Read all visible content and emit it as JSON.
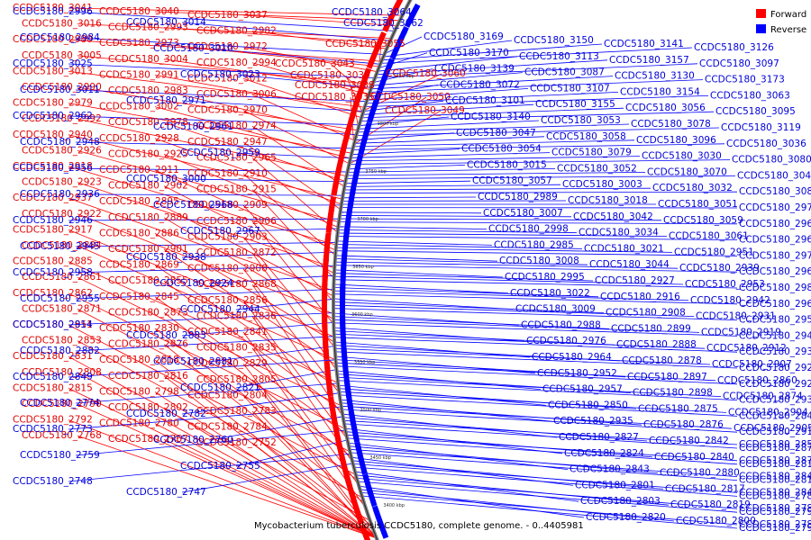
{
  "figure": {
    "caption": "Mycobacterium tuberculosis CCDC5180, complete genome. - 0..4405981",
    "legend": {
      "forward": {
        "label": "Forward",
        "color": "#ff0000"
      },
      "reverse": {
        "label": "Reverse",
        "color": "#0000ff"
      }
    },
    "scale_marks": [
      "3400 kbp",
      "3450 kbp",
      "3500 kbp",
      "3550 kbp",
      "3600 kbp",
      "3650 kbp",
      "3700 kbp",
      "3750 kbp",
      "3800 kbp",
      "3850 kbp"
    ],
    "forward_genes": [
      "CCDC5180_3055",
      "CCDC5180_3060",
      "CCDC5180_3049",
      "CCDC5180_3043",
      "CCDC5180_3039",
      "CCDC5180_3038",
      "CCDC5180_3035",
      "CCDC5180_3050",
      "CCDC5180_3041",
      "CCDC5180_3040",
      "CCDC5180_3037",
      "CCDC5180_3016",
      "CCDC5180_2993",
      "CCDC5180_2982",
      "CCDC5180_2980",
      "CCDC5180_2973",
      "CCDC5180_2972",
      "CCDC5180_3005",
      "CCDC5180_3004",
      "CCDC5180_2994",
      "CCDC5180_3013",
      "CCDC5180_2991",
      "CCDC5180_3012",
      "CCDC5180_2990",
      "CCDC5180_2983",
      "CCDC5180_3006",
      "CCDC5180_2979",
      "CCDC5180_3002",
      "CCDC5180_2970",
      "CCDC5180_2992",
      "CCDC5180_2978",
      "CCDC5180_2974",
      "CCDC5180_2940",
      "CCDC5180_2928",
      "CCDC5180_2947",
      "CCDC5180_2926",
      "CCDC5180_2925",
      "CCDC5180_2965",
      "CCDC5180_2918",
      "CCDC5180_2911",
      "CCDC5180_2910",
      "CCDC5180_2923",
      "CCDC5180_2902",
      "CCDC5180_2915",
      "CCDC5180_2937",
      "CCDC5180_2895",
      "CCDC5180_2909",
      "CCDC5180_2922",
      "CCDC5180_2889",
      "CCDC5180_2906",
      "CCDC5180_2917",
      "CCDC5180_2886",
      "CCDC5180_2903",
      "CCDC5180_2884",
      "CCDC5180_2901",
      "CCDC5180_2872",
      "CCDC5180_2885",
      "CCDC5180_2869",
      "CCDC5180_2900",
      "CCDC5180_2861",
      "CCDC5180_2855",
      "CCDC5180_2868",
      "CCDC5180_2862",
      "CCDC5180_2845",
      "CCDC5180_2856",
      "CCDC5180_2871",
      "CCDC5180_2873",
      "CCDC5180_2836",
      "CCDC5180_2851",
      "CCDC5180_2830",
      "CCDC5180_2841",
      "CCDC5180_2853",
      "CCDC5180_2826",
      "CCDC5180_2835",
      "CCDC5180_2831",
      "CCDC5180_2818",
      "CCDC5180_2829",
      "CCDC5180_2808",
      "CCDC5180_2816",
      "CCDC5180_2805",
      "CCDC5180_2815",
      "CCDC5180_2798",
      "CCDC5180_2804",
      "CCDC5180_2790",
      "CCDC5180_2802",
      "CCDC5180_2783",
      "CCDC5180_2792",
      "CCDC5180_2780",
      "CCDC5180_2784",
      "CCDC5180_2768",
      "CCDC5180_2767",
      "CCDC5180_2752"
    ],
    "reverse_genes": [
      "CCDC5180_3064",
      "CCDC5180_3062",
      "CCDC5180_2996",
      "CCDC5180_3014",
      "CCDC5180_2984",
      "CCDC5180_3010",
      "CCDC5180_3025",
      "CCDC5180_3023",
      "CCDC5180_3011",
      "CCDC5180_2971",
      "CCDC5180_2962",
      "CCDC5180_2961",
      "CCDC5180_2948",
      "CCDC5180_2959",
      "CCDC5180_2956",
      "CCDC5180_3000",
      "CCDC5180_2936",
      "CCDC5180_2968",
      "CCDC5180_2946",
      "CCDC5180_2967",
      "CCDC5180_2945",
      "CCDC5180_2938",
      "CCDC5180_2958",
      "CCDC5180_2924",
      "CCDC5180_2955",
      "CCDC5180_2944",
      "CCDC5180_2914",
      "CCDC5180_2883",
      "CCDC5180_2882",
      "CCDC5180_2881",
      "CCDC5180_2849",
      "CCDC5180_2821",
      "CCDC5180_2774",
      "CCDC5180_2782",
      "CCDC5180_2773",
      "CCDC5180_2760",
      "CCDC5180_2759",
      "CCDC5180_2755",
      "CCDC5180_2748",
      "CCDC5180_2747",
      "CCDC5180_3169",
      "CCDC5180_3150",
      "CCDC5180_3141",
      "CCDC5180_3126",
      "CCDC5180_3170",
      "CCDC5180_3113",
      "CCDC5180_3157",
      "CCDC5180_3097",
      "CCDC5180_3139",
      "CCDC5180_3087",
      "CCDC5180_3130",
      "CCDC5180_3173",
      "CCDC5180_3072",
      "CCDC5180_3107",
      "CCDC5180_3154",
      "CCDC5180_3063",
      "CCDC5180_3101",
      "CCDC5180_3155",
      "CCDC5180_3056",
      "CCDC5180_3095",
      "CCDC5180_3140",
      "CCDC5180_3053",
      "CCDC5180_3078",
      "CCDC5180_3119",
      "CCDC5180_3047",
      "CCDC5180_3058",
      "CCDC5180_3096",
      "CCDC5180_3036",
      "CCDC5180_3054",
      "CCDC5180_3079",
      "CCDC5180_3030",
      "CCDC5180_3080",
      "CCDC5180_3015",
      "CCDC5180_3052",
      "CCDC5180_3070",
      "CCDC5180_3045",
      "CCDC5180_3057",
      "CCDC5180_3003",
      "CCDC5180_3032",
      "CCDC5180_3081",
      "CCDC5180_2989",
      "CCDC5180_3018",
      "CCDC5180_3051",
      "CCDC5180_2977",
      "CCDC5180_3007",
      "CCDC5180_3042",
      "CCDC5180_3059",
      "CCDC5180_2969",
      "CCDC5180_2998",
      "CCDC5180_3034",
      "CCDC5180_3061",
      "CCDC5180_2960",
      "CCDC5180_2985",
      "CCDC5180_3021",
      "CCDC5180_2951",
      "CCDC5180_2975",
      "CCDC5180_3008",
      "CCDC5180_3044",
      "CCDC5180_2939",
      "CCDC5180_2963",
      "CCDC5180_2995",
      "CCDC5180_2927",
      "CCDC5180_2953",
      "CCDC5180_2981",
      "CCDC5180_3022",
      "CCDC5180_2916",
      "CCDC5180_2942",
      "CCDC5180_2966",
      "CCDC5180_3009",
      "CCDC5180_2908",
      "CCDC5180_2931",
      "CCDC5180_2954",
      "CCDC5180_2988",
      "CCDC5180_2899",
      "CCDC5180_2919",
      "CCDC5180_2943",
      "CCDC5180_2976",
      "CCDC5180_2888",
      "CCDC5180_2912",
      "CCDC5180_2933",
      "CCDC5180_2964",
      "CCDC5180_2878",
      "CCDC5180_2907",
      "CCDC5180_2920",
      "CCDC5180_2952",
      "CCDC5180_2897",
      "CCDC5180_2860",
      "CCDC5180_2921",
      "CCDC5180_2957",
      "CCDC5180_2898",
      "CCDC5180_2874",
      "CCDC5180_2934",
      "CCDC5180_2850",
      "CCDC5180_2875",
      "CCDC5180_2904",
      "CCDC5180_2846",
      "CCDC5180_2935",
      "CCDC5180_2876",
      "CCDC5180_2905",
      "CCDC5180_2913",
      "CCDC5180_2827",
      "CCDC5180_2842",
      "CCDC5180_2858",
      "CCDC5180_2877",
      "CCDC5180_2824",
      "CCDC5180_2840",
      "CCDC5180_2879",
      "CCDC5180_2813",
      "CCDC5180_2843",
      "CCDC5180_2880",
      "CCDC5180_2844",
      "CCDC5180_2814",
      "CCDC5180_2801",
      "CCDC5180_2817",
      "CCDC5180_2848",
      "CCDC5180_2789",
      "CCDC5180_2803",
      "CCDC5180_2819",
      "CCDC5180_2781",
      "CCDC5180_2793",
      "CCDC5180_2820",
      "CCDC5180_2800",
      "CCDC5180_2785",
      "CCDC5180_2796"
    ]
  }
}
